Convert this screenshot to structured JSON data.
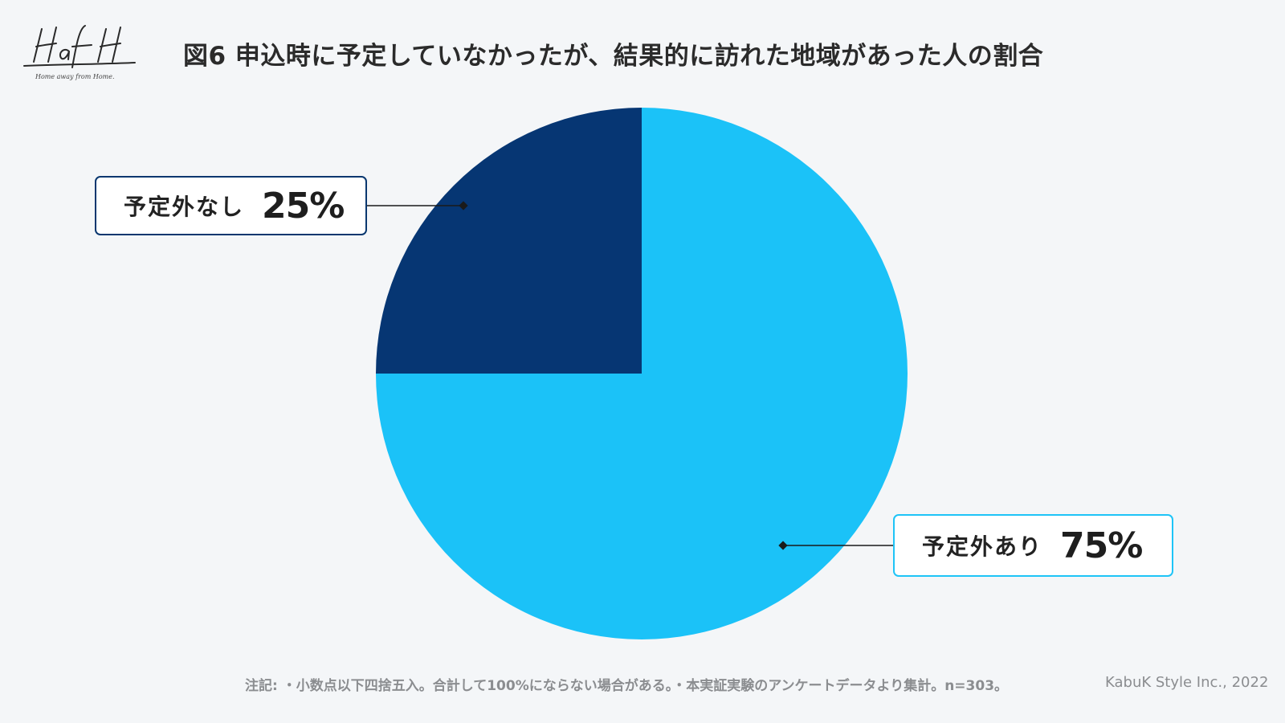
{
  "logo": {
    "name": "HafH",
    "tagline": "Home away from Home."
  },
  "header": {
    "title": "図6 申込時に予定していなかったが、結果的に訪れた地域があった人の割合"
  },
  "chart_data": {
    "type": "pie",
    "title": "図6 申込時に予定していなかったが、結果的に訪れた地域があった人の割合",
    "slices": [
      {
        "label": "予定外なし",
        "value": 25,
        "display": "25%",
        "color": "#063673"
      },
      {
        "label": "予定外あり",
        "value": 75,
        "display": "75%",
        "color": "#1bc2f8"
      }
    ],
    "start": "12 o'clock",
    "direction": "counter-clockwise"
  },
  "footer": {
    "note": "注記: ・小数点以下四捨五入。合計して100%にならない場合がある。・本実証実験のアンケートデータより集計。n=303。",
    "credit": "KabuK Style Inc., 2022"
  }
}
